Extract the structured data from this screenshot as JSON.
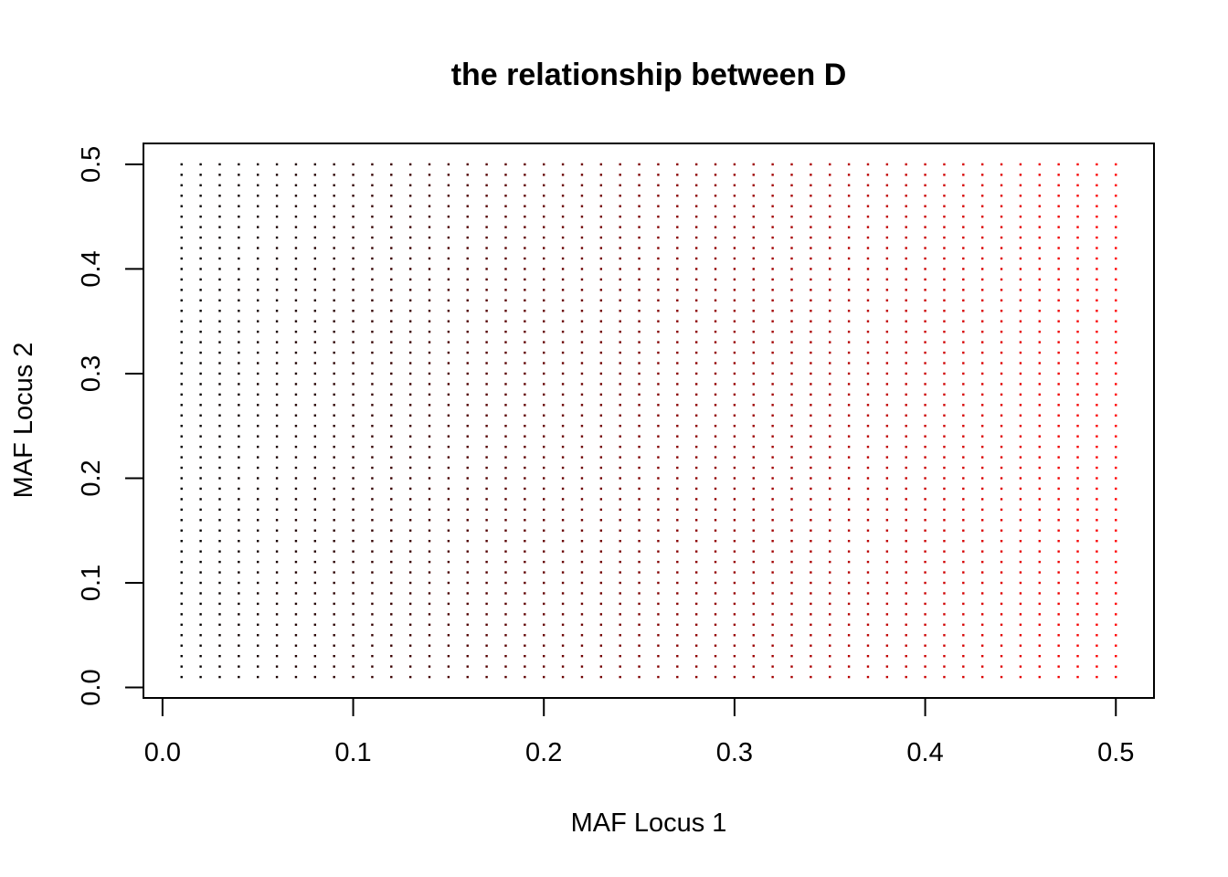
{
  "chart_data": {
    "type": "scatter",
    "title": "the relationship between D",
    "xlabel": "MAF Locus 1",
    "ylabel": "MAF Locus 2",
    "xlim": [
      -0.01,
      0.52
    ],
    "ylim": [
      -0.01,
      0.52
    ],
    "x_ticks": [
      "0.0",
      "0.1",
      "0.2",
      "0.3",
      "0.4",
      "0.5"
    ],
    "y_ticks": [
      "0.0",
      "0.1",
      "0.2",
      "0.3",
      "0.4",
      "0.5"
    ],
    "grid": false,
    "legend": false,
    "points": {
      "x_start": 0.01,
      "x_end": 0.5,
      "x_step": 0.01,
      "y_start": 0.01,
      "y_end": 0.5,
      "y_step": 0.01,
      "color_low": "#000000",
      "color_high": "#ff0000",
      "color_varies_with": "x"
    }
  }
}
